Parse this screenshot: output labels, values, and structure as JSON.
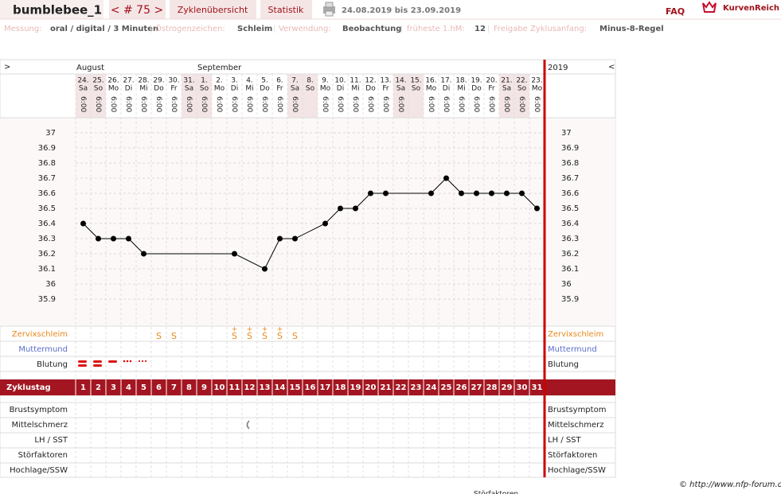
{
  "header": {
    "user": "bumblebee_1",
    "cycle_nav": "< # 75 >",
    "tabs": [
      "Zyklenübersicht",
      "Statistik"
    ],
    "date_range": "24.08.2019 bis 23.09.2019",
    "faq": "FAQ",
    "logo": "KurvenReich"
  },
  "info": {
    "separator": "|",
    "items": [
      {
        "label": "Messung:",
        "value": "oral / digital / 3 Minuten"
      },
      {
        "label": "Östrogenzeichen:",
        "value": "Schleim"
      },
      {
        "label": "Verwendung:",
        "value": "Beobachtung"
      },
      {
        "label": "früheste 1.hM:",
        "value": "12"
      },
      {
        "label": "Freigabe Zyklusanfang:",
        "value": "Minus-8-Regel"
      }
    ]
  },
  "chart_data": {
    "type": "line",
    "nav_left": ">",
    "nav_right": "<",
    "months": [
      "August",
      "September"
    ],
    "year": "2019",
    "dates": [
      "24.",
      "25.",
      "26.",
      "27.",
      "28.",
      "29.",
      "30.",
      "31.",
      "1.",
      "2.",
      "3.",
      "4.",
      "5.",
      "6.",
      "7.",
      "8.",
      "9.",
      "10.",
      "11.",
      "12.",
      "13.",
      "14.",
      "15.",
      "16.",
      "17.",
      "18.",
      "19.",
      "20.",
      "21.",
      "22.",
      "23."
    ],
    "weekdays": [
      "Sa",
      "So",
      "Mo",
      "Di",
      "Mi",
      "Do",
      "Fr",
      "Sa",
      "So",
      "Mo",
      "Di",
      "Mi",
      "Do",
      "Fr",
      "Sa",
      "So",
      "Mo",
      "Di",
      "Mi",
      "Do",
      "Fr",
      "Sa",
      "So",
      "Mo",
      "Di",
      "Mi",
      "Do",
      "Fr",
      "Sa",
      "So",
      "Mo"
    ],
    "times": [
      "6:00",
      "6:00",
      "6:00",
      "6:00",
      "6:00",
      "6:00",
      "6:00",
      "6:00",
      "6:00",
      "6:00",
      "6:00",
      "6:00",
      "6:00",
      "6:00",
      "6:00",
      null,
      "6:00",
      "6:00",
      "6:00",
      "6:00",
      "6:00",
      "6:00",
      null,
      "6:00",
      "6:00",
      "6:00",
      "6:00",
      "6:00",
      "6:00",
      "6:00",
      "6:00"
    ],
    "x": [
      1,
      2,
      3,
      4,
      5,
      11,
      13,
      14,
      15,
      17,
      18,
      19,
      20,
      21,
      24,
      25,
      26,
      27,
      28,
      29,
      30,
      31
    ],
    "values": [
      36.4,
      36.3,
      36.3,
      36.3,
      36.2,
      36.2,
      36.1,
      36.3,
      36.3,
      36.4,
      36.5,
      36.5,
      36.6,
      36.6,
      36.6,
      36.7,
      36.6,
      36.6,
      36.6,
      36.6,
      36.6,
      36.5
    ],
    "color": "#000000",
    "ylim": [
      35.8,
      37.1
    ],
    "yticks": [
      37,
      36.9,
      36.8,
      36.7,
      36.6,
      36.5,
      36.4,
      36.3,
      36.2,
      36.1,
      36,
      35.9
    ],
    "grid": true,
    "rows_top": [
      "Zervixschleim",
      "Muttermund",
      "Blutung"
    ],
    "cervical_mucus": [
      null,
      null,
      null,
      null,
      null,
      {
        "symbol": "S"
      },
      {
        "symbol": "S"
      },
      null,
      null,
      null,
      {
        "symbol": "S",
        "mark": "+"
      },
      {
        "symbol": "S",
        "mark": "+"
      },
      {
        "symbol": "S",
        "mark": "+"
      },
      {
        "symbol": "S",
        "mark": "+"
      },
      {
        "symbol": "S"
      },
      null,
      null,
      null,
      null,
      null,
      null,
      null,
      null,
      null,
      null,
      null,
      null,
      null,
      null,
      null,
      null
    ],
    "cycle_day_label": "Zyklustag",
    "cycle_days": [
      1,
      2,
      3,
      4,
      5,
      6,
      7,
      8,
      9,
      10,
      11,
      12,
      13,
      14,
      15,
      16,
      17,
      18,
      19,
      20,
      21,
      22,
      23,
      24,
      25,
      26,
      27,
      28,
      29,
      30,
      31
    ],
    "rows_bottom": [
      "Brustsymptom",
      "Mittelschmerz",
      "LH / SST",
      "Störfaktoren",
      "Hochlage/SSW"
    ]
  },
  "footer": {
    "copyright": "© http://www.nfp-forum.de",
    "cut_text": "Störfaktoren"
  }
}
